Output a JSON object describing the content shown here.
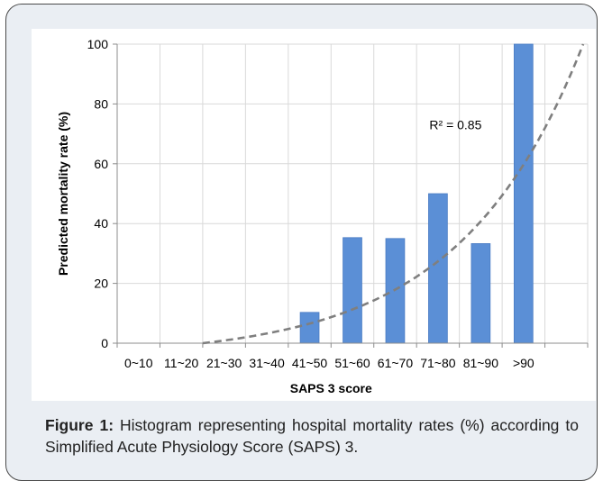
{
  "caption": {
    "label": "Figure 1:",
    "text": "Histogram representing hospital mortality rates (%) according to Simplified Acute Physiology Score (SAPS) 3."
  },
  "chart_data": {
    "type": "bar",
    "categories": [
      "0~10",
      "11~20",
      "21~30",
      "31~40",
      "41~50",
      "51~60",
      "61~70",
      "71~80",
      "81~90",
      ">90"
    ],
    "values": [
      0,
      0,
      0,
      0,
      10.3,
      35.3,
      35,
      50,
      33.3,
      100
    ],
    "xlabel": "SAPS 3 score",
    "ylabel": "Predicted mortality rate (%)",
    "ylim": [
      0,
      100
    ],
    "yticks": [
      0,
      20,
      40,
      60,
      80,
      100
    ],
    "grid": true,
    "trendline": {
      "type": "exponential",
      "style": "dashed",
      "label": "R² = 0.85"
    },
    "colors": {
      "bar": "#5b8fd6",
      "bar_border": "#4a7cc4",
      "trendline": "#7f7f7f",
      "grid": "#d9d9d9"
    }
  }
}
